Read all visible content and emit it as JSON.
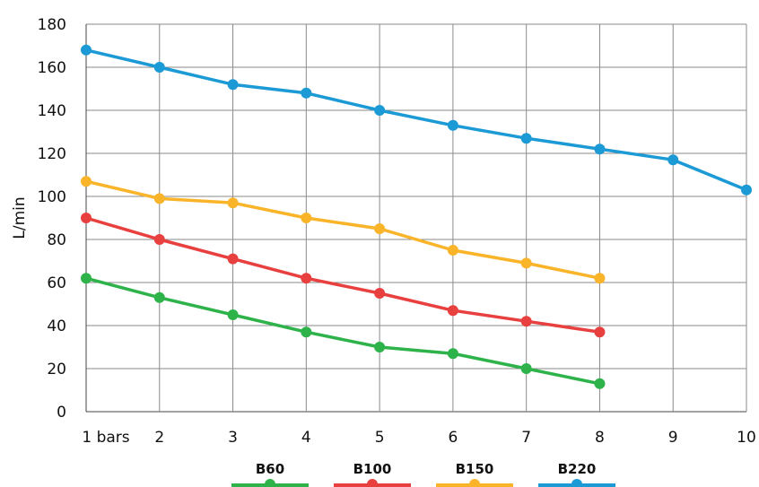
{
  "chart_data": {
    "type": "line",
    "title": "",
    "xlabel": "",
    "ylabel": "L/min",
    "x": [
      1,
      2,
      3,
      4,
      5,
      6,
      7,
      8,
      9,
      10
    ],
    "x_tick_labels": [
      "1 bars",
      "2",
      "3",
      "4",
      "5",
      "6",
      "7",
      "8",
      "9",
      "10"
    ],
    "xlim": [
      1,
      10
    ],
    "ylim": [
      0,
      180
    ],
    "y_ticks": [
      0,
      20,
      40,
      60,
      80,
      100,
      120,
      140,
      160,
      180
    ],
    "grid": true,
    "legend_position": "bottom",
    "series": [
      {
        "name": "B60",
        "color": "#2eb24a",
        "x": [
          1,
          2,
          3,
          4,
          5,
          6,
          7,
          8
        ],
        "values": [
          62,
          53,
          45,
          37,
          30,
          27,
          20,
          13
        ]
      },
      {
        "name": "B100",
        "color": "#e8403f",
        "x": [
          1,
          2,
          3,
          4,
          5,
          6,
          7,
          8
        ],
        "values": [
          90,
          80,
          71,
          62,
          55,
          47,
          42,
          37
        ]
      },
      {
        "name": "B150",
        "color": "#f9b42a",
        "x": [
          1,
          2,
          3,
          4,
          5,
          6,
          7,
          8
        ],
        "values": [
          107,
          99,
          97,
          90,
          85,
          75,
          69,
          62
        ]
      },
      {
        "name": "B220",
        "color": "#1c9ad6",
        "x": [
          1,
          2,
          3,
          4,
          5,
          6,
          7,
          8,
          9,
          10
        ],
        "values": [
          168,
          160,
          152,
          148,
          140,
          133,
          127,
          122,
          117,
          103
        ]
      }
    ]
  }
}
